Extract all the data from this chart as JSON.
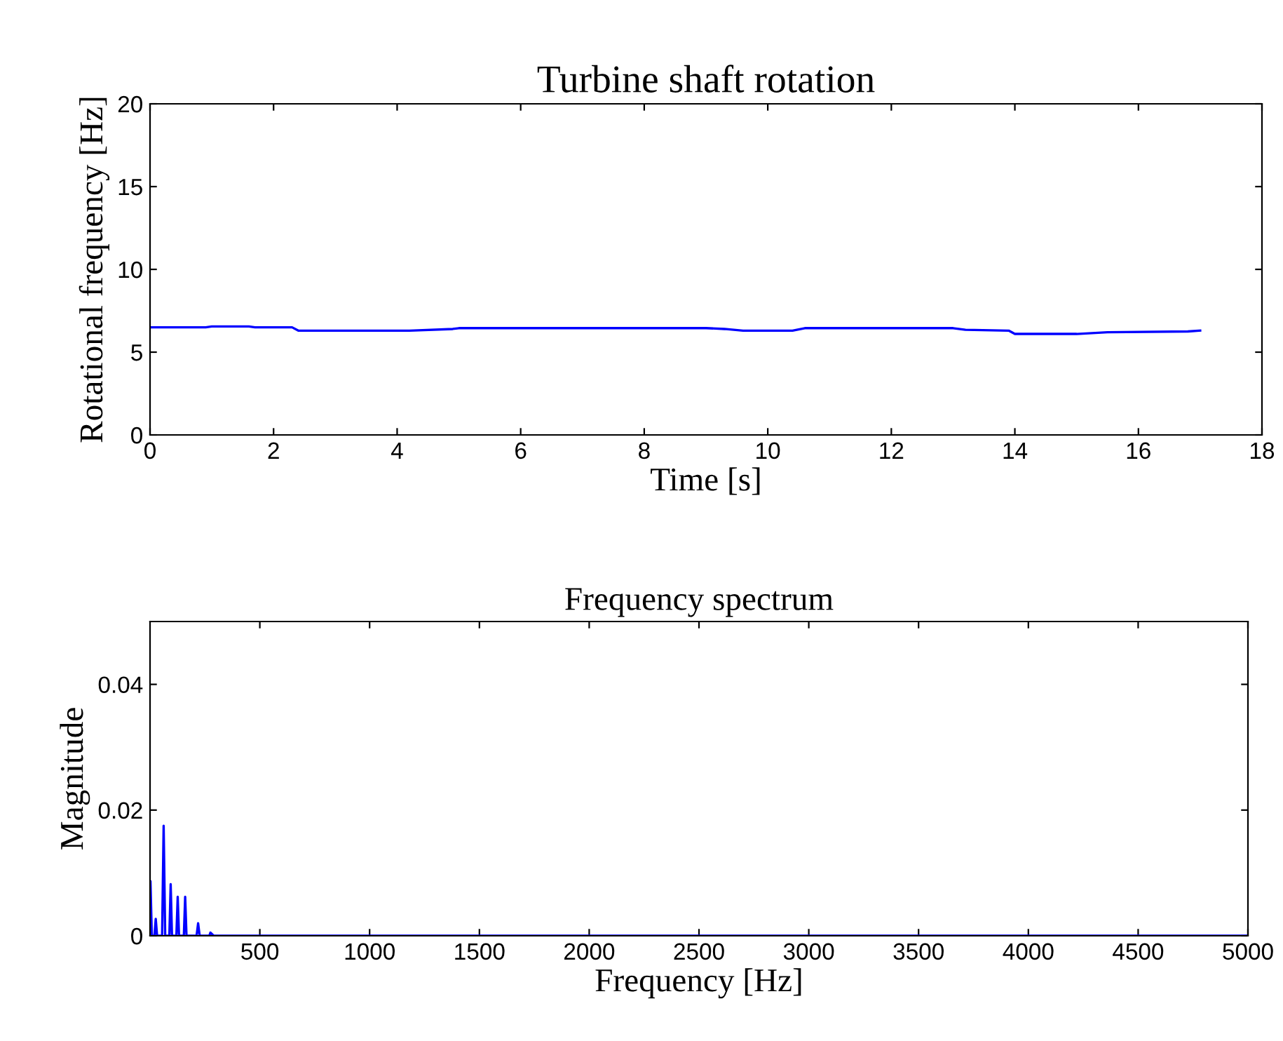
{
  "chart_data": [
    {
      "type": "line",
      "title": "Turbine shaft rotation",
      "xlabel": "Time [s]",
      "ylabel": "Rotational frequency [Hz]",
      "series": [
        {
          "color": "#0000ff",
          "x": [
            0,
            0.9,
            1.0,
            1.2,
            1.4,
            1.6,
            1.7,
            2.3,
            2.4,
            4.2,
            4.9,
            5.0,
            9.0,
            9.3,
            9.6,
            10.4,
            10.6,
            13.0,
            13.2,
            13.9,
            14.0,
            15.0,
            15.5,
            16.8,
            17.0
          ],
          "values": [
            6.5,
            6.5,
            6.55,
            6.55,
            6.55,
            6.55,
            6.5,
            6.5,
            6.3,
            6.3,
            6.4,
            6.45,
            6.45,
            6.4,
            6.3,
            6.3,
            6.45,
            6.45,
            6.35,
            6.3,
            6.1,
            6.1,
            6.2,
            6.25,
            6.3
          ]
        }
      ],
      "xlim": [
        0,
        18
      ],
      "xticks": [
        0,
        2,
        4,
        6,
        8,
        10,
        12,
        14,
        16,
        18
      ],
      "ylim": [
        0,
        20
      ],
      "yticks": [
        0,
        5,
        10,
        15,
        20
      ],
      "grid": false,
      "legend": false,
      "marker": "none",
      "line_style": "solid"
    },
    {
      "type": "line",
      "title": "Frequency spectrum",
      "xlabel": "Frequency [Hz]",
      "ylabel": "Magnitude",
      "series": [
        {
          "color": "#0000ff",
          "x": [
            0,
            2,
            8,
            20,
            26,
            32,
            55,
            62,
            69,
            88,
            94,
            100,
            120,
            126,
            132,
            154,
            160,
            166,
            212,
            219,
            226,
            270,
            275,
            290,
            5000
          ],
          "values": [
            0.0087,
            0.0087,
            0.0,
            0.0,
            0.0027,
            0.0,
            0.0,
            0.0175,
            0.0,
            0.0,
            0.0082,
            0.0,
            0.0,
            0.0062,
            0.0,
            0.0,
            0.0062,
            0.0,
            0.0,
            0.002,
            0.0,
            0.0,
            0.0005,
            0.0,
            0.0
          ]
        }
      ],
      "xlim": [
        0,
        5000
      ],
      "xticks": [
        500,
        1000,
        1500,
        2000,
        2500,
        3000,
        3500,
        4000,
        4500,
        5000
      ],
      "ylim": [
        0,
        0.05
      ],
      "yticks": [
        0,
        0.02,
        0.04
      ],
      "grid": false,
      "legend": false,
      "marker": "none",
      "line_style": "solid"
    }
  ]
}
